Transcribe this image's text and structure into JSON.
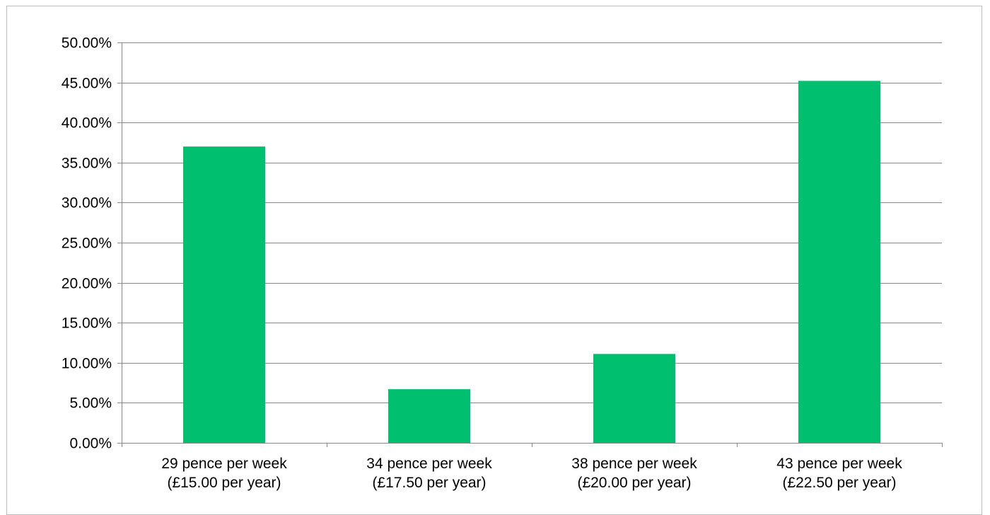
{
  "chart_data": {
    "type": "bar",
    "title": "",
    "xlabel": "",
    "ylabel": "",
    "categories": [
      [
        "29 pence per week",
        "(£15.00 per year)"
      ],
      [
        "34 pence per week",
        "(£17.50 per year)"
      ],
      [
        "38 pence per week",
        "(£20.00 per year)"
      ],
      [
        "43 pence per week",
        "(£22.50 per year)"
      ]
    ],
    "values": [
      0.37,
      0.067,
      0.111,
      0.452
    ],
    "ylim": [
      0,
      0.5
    ],
    "yticks": [
      "0.00%",
      "5.00%",
      "10.00%",
      "15.00%",
      "20.00%",
      "25.00%",
      "30.00%",
      "35.00%",
      "40.00%",
      "45.00%",
      "50.00%"
    ],
    "grid": true,
    "legend": "none",
    "bar_color": "#00BF6F",
    "grid_color": "#888888",
    "axis_color": "#888888"
  }
}
